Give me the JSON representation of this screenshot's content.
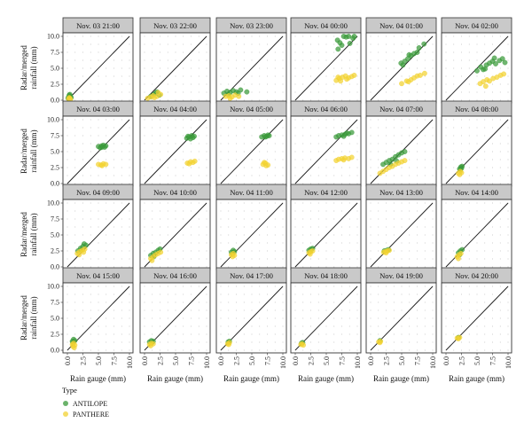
{
  "chart_data": {
    "type": "scatter",
    "facet_by": "time",
    "xlabel": "Rain gauge (mm)",
    "ylabel": "Radar/merged rainfall (mm)",
    "xlim": [
      0,
      10
    ],
    "ylim": [
      0,
      10
    ],
    "x_ticks": [
      "0.0",
      "2.5",
      "5.0",
      "7.5",
      "10.0"
    ],
    "y_ticks": [
      "0.0",
      "2.5",
      "5.0",
      "7.5",
      "10.0"
    ],
    "reference_line": "y = x",
    "grid": "dotted",
    "legend": {
      "title": "Type",
      "position": "bottom-left",
      "entries": [
        {
          "label": "ANTILOPE",
          "color": "#3a9a3a"
        },
        {
          "label": "PANTHERE",
          "color": "#f2d232"
        }
      ]
    },
    "panels": [
      {
        "label": "Nov. 03 21:00",
        "ANTILOPE": [
          [
            0.1,
            0.3
          ],
          [
            0.3,
            0.8
          ],
          [
            0.5,
            0.6
          ],
          [
            0.2,
            0.5
          ],
          [
            0.4,
            0.9
          ],
          [
            0.6,
            0.4
          ]
        ],
        "PANTHERE": [
          [
            0.2,
            0.2
          ],
          [
            0.4,
            0.3
          ],
          [
            0.3,
            0.4
          ],
          [
            0.5,
            0.1
          ]
        ]
      },
      {
        "label": "Nov. 03 22:00",
        "ANTILOPE": [
          [
            1.0,
            0.6
          ],
          [
            1.5,
            0.9
          ],
          [
            2.0,
            1.3
          ],
          [
            2.4,
            0.8
          ],
          [
            1.8,
            1.1
          ]
        ],
        "PANTHERE": [
          [
            0.5,
            0.3
          ],
          [
            1.0,
            0.5
          ],
          [
            1.4,
            0.7
          ],
          [
            2.0,
            0.6
          ],
          [
            2.6,
            0.9
          ],
          [
            2.2,
            1.2
          ],
          [
            1.6,
            0.4
          ]
        ]
      },
      {
        "label": "Nov. 03 23:00",
        "ANTILOPE": [
          [
            0.5,
            1.1
          ],
          [
            1.0,
            1.4
          ],
          [
            1.5,
            1.2
          ],
          [
            2.0,
            1.5
          ],
          [
            2.5,
            1.3
          ],
          [
            1.2,
            0.9
          ],
          [
            3.2,
            1.6
          ],
          [
            4.2,
            1.3
          ],
          [
            2.8,
            1.1
          ]
        ],
        "PANTHERE": [
          [
            0.8,
            0.6
          ],
          [
            1.3,
            0.7
          ],
          [
            1.8,
            0.5
          ],
          [
            2.3,
            0.8
          ],
          [
            2.9,
            0.6
          ],
          [
            1.5,
            0.3
          ]
        ]
      },
      {
        "label": "Nov. 04 00:00",
        "ANTILOPE": [
          [
            6.8,
            9.4
          ],
          [
            7.5,
            8.6
          ],
          [
            8.2,
            9.9
          ],
          [
            8.8,
            8.9
          ],
          [
            9.3,
            9.7
          ],
          [
            7.8,
            10.0
          ],
          [
            8.6,
            10.0
          ],
          [
            6.9,
            8.0
          ],
          [
            9.5,
            10.0
          ],
          [
            7.2,
            9.0
          ]
        ],
        "PANTHERE": [
          [
            6.6,
            3.1
          ],
          [
            7.1,
            3.4
          ],
          [
            7.6,
            3.6
          ],
          [
            8.1,
            3.8
          ],
          [
            8.6,
            3.5
          ],
          [
            9.1,
            3.7
          ],
          [
            9.5,
            3.9
          ],
          [
            7.3,
            3.0
          ],
          [
            8.3,
            3.3
          ],
          [
            6.9,
            3.6
          ]
        ]
      },
      {
        "label": "Nov. 04 01:00",
        "ANTILOPE": [
          [
            4.9,
            5.8
          ],
          [
            5.5,
            6.1
          ],
          [
            6.0,
            6.5
          ],
          [
            6.5,
            7.0
          ],
          [
            7.0,
            7.3
          ],
          [
            7.5,
            7.5
          ],
          [
            7.8,
            8.2
          ],
          [
            8.6,
            8.8
          ],
          [
            6.2,
            7.1
          ],
          [
            5.2,
            5.5
          ]
        ],
        "PANTHERE": [
          [
            5.0,
            2.6
          ],
          [
            5.8,
            3.0
          ],
          [
            6.5,
            3.2
          ],
          [
            7.0,
            3.5
          ],
          [
            7.5,
            3.8
          ],
          [
            8.0,
            3.9
          ],
          [
            8.7,
            4.2
          ],
          [
            6.1,
            2.9
          ]
        ]
      },
      {
        "label": "Nov. 04 02:00",
        "ANTILOPE": [
          [
            5.0,
            4.6
          ],
          [
            5.6,
            5.2
          ],
          [
            6.0,
            4.8
          ],
          [
            6.5,
            5.5
          ],
          [
            7.0,
            5.8
          ],
          [
            7.5,
            6.1
          ],
          [
            8.0,
            5.7
          ],
          [
            8.6,
            6.2
          ],
          [
            9.1,
            6.5
          ],
          [
            9.5,
            5.9
          ],
          [
            6.3,
            4.9
          ],
          [
            7.8,
            6.6
          ]
        ],
        "PANTHERE": [
          [
            5.5,
            2.6
          ],
          [
            6.0,
            2.9
          ],
          [
            6.6,
            3.2
          ],
          [
            7.0,
            3.0
          ],
          [
            7.6,
            3.4
          ],
          [
            8.2,
            3.6
          ],
          [
            8.8,
            3.9
          ],
          [
            9.3,
            4.1
          ],
          [
            6.4,
            2.2
          ]
        ]
      },
      {
        "label": "Nov. 04 03:00",
        "ANTILOPE": [
          [
            5.0,
            5.8
          ],
          [
            5.5,
            5.9
          ],
          [
            6.0,
            5.7
          ],
          [
            5.3,
            5.6
          ],
          [
            5.8,
            6.0
          ],
          [
            6.2,
            5.9
          ],
          [
            5.6,
            5.7
          ]
        ],
        "PANTHERE": [
          [
            5.0,
            3.0
          ],
          [
            5.4,
            2.9
          ],
          [
            5.8,
            3.1
          ],
          [
            6.2,
            3.0
          ],
          [
            5.6,
            2.8
          ]
        ]
      },
      {
        "label": "Nov. 04 04:00",
        "ANTILOPE": [
          [
            6.8,
            7.1
          ],
          [
            7.2,
            7.3
          ],
          [
            7.6,
            7.5
          ],
          [
            8.0,
            7.4
          ],
          [
            7.4,
            7.0
          ],
          [
            7.8,
            7.2
          ],
          [
            7.0,
            7.4
          ]
        ],
        "PANTHERE": [
          [
            6.9,
            3.2
          ],
          [
            7.4,
            3.4
          ],
          [
            7.8,
            3.3
          ],
          [
            8.1,
            3.5
          ],
          [
            7.2,
            3.1
          ]
        ]
      },
      {
        "label": "Nov. 04 05:00",
        "ANTILOPE": [
          [
            6.6,
            7.3
          ],
          [
            7.0,
            7.5
          ],
          [
            7.4,
            7.4
          ],
          [
            7.8,
            7.5
          ],
          [
            7.2,
            7.3
          ],
          [
            7.6,
            7.6
          ]
        ],
        "PANTHERE": [
          [
            6.8,
            3.0
          ],
          [
            7.2,
            3.2
          ],
          [
            7.6,
            2.9
          ],
          [
            7.3,
            2.8
          ],
          [
            7.0,
            3.3
          ]
        ]
      },
      {
        "label": "Nov. 04 06:00",
        "ANTILOPE": [
          [
            6.6,
            7.3
          ],
          [
            7.0,
            7.5
          ],
          [
            7.5,
            7.6
          ],
          [
            8.0,
            7.7
          ],
          [
            8.6,
            7.8
          ],
          [
            9.1,
            8.0
          ],
          [
            7.8,
            7.4
          ],
          [
            8.3,
            7.9
          ]
        ],
        "PANTHERE": [
          [
            6.6,
            3.6
          ],
          [
            7.0,
            3.8
          ],
          [
            7.5,
            3.9
          ],
          [
            8.0,
            4.0
          ],
          [
            8.6,
            3.9
          ],
          [
            9.1,
            4.1
          ],
          [
            7.8,
            3.7
          ]
        ]
      },
      {
        "label": "Nov. 04 07:00",
        "ANTILOPE": [
          [
            2.0,
            3.0
          ],
          [
            2.5,
            3.3
          ],
          [
            3.0,
            3.6
          ],
          [
            3.5,
            3.8
          ],
          [
            4.0,
            4.2
          ],
          [
            4.5,
            4.5
          ],
          [
            5.0,
            4.8
          ],
          [
            5.5,
            5.0
          ],
          [
            4.2,
            3.5
          ],
          [
            3.2,
            3.0
          ]
        ],
        "PANTHERE": [
          [
            1.5,
            1.6
          ],
          [
            2.0,
            1.9
          ],
          [
            2.5,
            2.2
          ],
          [
            3.0,
            2.5
          ],
          [
            3.5,
            2.7
          ],
          [
            4.0,
            3.0
          ],
          [
            4.5,
            3.2
          ],
          [
            5.0,
            3.4
          ],
          [
            5.5,
            3.6
          ]
        ]
      },
      {
        "label": "Nov. 04 08:00",
        "ANTILOPE": [
          [
            2.2,
            2.3
          ],
          [
            2.4,
            2.6
          ],
          [
            2.6,
            2.7
          ],
          [
            2.3,
            2.1
          ],
          [
            2.5,
            2.4
          ]
        ],
        "PANTHERE": [
          [
            2.0,
            1.6
          ],
          [
            2.3,
            1.9
          ],
          [
            2.5,
            1.7
          ],
          [
            2.2,
            1.4
          ]
        ]
      },
      {
        "label": "Nov. 04 09:00",
        "ANTILOPE": [
          [
            1.7,
            2.5
          ],
          [
            2.1,
            2.9
          ],
          [
            2.5,
            3.2
          ],
          [
            3.0,
            3.4
          ],
          [
            2.7,
            3.6
          ],
          [
            2.3,
            2.7
          ]
        ],
        "PANTHERE": [
          [
            1.6,
            2.1
          ],
          [
            2.0,
            2.4
          ],
          [
            2.4,
            2.6
          ],
          [
            2.8,
            2.8
          ],
          [
            1.9,
            1.9
          ],
          [
            2.6,
            2.3
          ]
        ]
      },
      {
        "label": "Nov. 04 10:00",
        "ANTILOPE": [
          [
            1.0,
            1.8
          ],
          [
            1.4,
            2.1
          ],
          [
            1.8,
            2.3
          ],
          [
            2.2,
            2.6
          ],
          [
            2.5,
            2.8
          ],
          [
            1.5,
            1.6
          ]
        ],
        "PANTHERE": [
          [
            1.0,
            1.3
          ],
          [
            1.4,
            1.6
          ],
          [
            1.8,
            1.9
          ],
          [
            2.2,
            2.1
          ],
          [
            2.6,
            2.3
          ],
          [
            1.2,
            1.0
          ]
        ]
      },
      {
        "label": "Nov. 04 11:00",
        "ANTILOPE": [
          [
            1.7,
            2.3
          ],
          [
            2.0,
            2.6
          ],
          [
            2.2,
            2.4
          ],
          [
            1.9,
            2.1
          ]
        ],
        "PANTHERE": [
          [
            1.7,
            1.9
          ],
          [
            2.0,
            2.1
          ],
          [
            2.2,
            1.8
          ],
          [
            1.9,
            1.6
          ]
        ]
      },
      {
        "label": "Nov. 04 12:00",
        "ANTILOPE": [
          [
            2.2,
            2.6
          ],
          [
            2.5,
            2.8
          ],
          [
            2.8,
            2.9
          ],
          [
            2.4,
            2.4
          ]
        ],
        "PANTHERE": [
          [
            2.2,
            2.2
          ],
          [
            2.5,
            2.4
          ],
          [
            2.8,
            2.5
          ],
          [
            2.4,
            2.0
          ]
        ]
      },
      {
        "label": "Nov. 04 13:00",
        "ANTILOPE": [
          [
            2.2,
            2.5
          ],
          [
            2.6,
            2.6
          ],
          [
            2.9,
            2.7
          ]
        ],
        "PANTHERE": [
          [
            2.1,
            2.3
          ],
          [
            2.4,
            2.4
          ],
          [
            2.7,
            2.5
          ],
          [
            3.0,
            2.6
          ],
          [
            2.5,
            2.2
          ]
        ]
      },
      {
        "label": "Nov. 04 14:00",
        "ANTILOPE": [
          [
            2.0,
            2.2
          ],
          [
            2.3,
            2.5
          ],
          [
            2.6,
            2.7
          ],
          [
            2.2,
            1.9
          ]
        ],
        "PANTHERE": [
          [
            1.8,
            1.6
          ],
          [
            2.1,
            1.9
          ],
          [
            2.4,
            2.1
          ],
          [
            2.0,
            1.3
          ]
        ]
      },
      {
        "label": "Nov. 04 15:00",
        "ANTILOPE": [
          [
            0.8,
            1.4
          ],
          [
            1.0,
            1.7
          ],
          [
            1.2,
            1.5
          ],
          [
            0.9,
            1.2
          ]
        ],
        "PANTHERE": [
          [
            0.8,
            0.9
          ],
          [
            1.0,
            1.1
          ],
          [
            1.2,
            0.8
          ],
          [
            0.9,
            0.6
          ],
          [
            1.1,
            0.4
          ]
        ]
      },
      {
        "label": "Nov. 04 16:00",
        "ANTILOPE": [
          [
            0.8,
            1.3
          ],
          [
            1.1,
            1.5
          ],
          [
            1.4,
            1.4
          ],
          [
            1.2,
            1.2
          ]
        ],
        "PANTHERE": [
          [
            0.8,
            0.9
          ],
          [
            1.1,
            1.1
          ],
          [
            1.4,
            1.0
          ],
          [
            1.0,
            0.7
          ]
        ]
      },
      {
        "label": "Nov. 04 17:00",
        "ANTILOPE": [
          [
            1.2,
            1.3
          ],
          [
            1.4,
            1.4
          ]
        ],
        "PANTHERE": [
          [
            1.1,
            1.0
          ],
          [
            1.4,
            1.2
          ],
          [
            1.3,
            0.9
          ]
        ]
      },
      {
        "label": "Nov. 04 18:00",
        "ANTILOPE": [
          [
            1.0,
            1.1
          ],
          [
            1.2,
            1.2
          ]
        ],
        "PANTHERE": [
          [
            0.9,
            0.9
          ],
          [
            1.1,
            1.0
          ],
          [
            1.3,
            0.8
          ]
        ]
      },
      {
        "label": "Nov. 04 19:00",
        "ANTILOPE": [
          [
            1.5,
            1.5
          ]
        ],
        "PANTHERE": [
          [
            1.3,
            1.3
          ],
          [
            1.6,
            1.4
          ],
          [
            1.5,
            1.2
          ]
        ]
      },
      {
        "label": "Nov. 04 20:00",
        "ANTILOPE": [
          [
            2.0,
            2.0
          ]
        ],
        "PANTHERE": [
          [
            1.8,
            1.9
          ],
          [
            2.2,
            2.0
          ],
          [
            2.0,
            1.8
          ]
        ]
      }
    ]
  }
}
